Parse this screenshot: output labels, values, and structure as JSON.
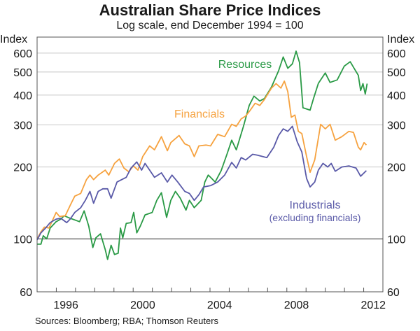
{
  "chart_data": {
    "type": "line",
    "title": "Australian Share Price Indices",
    "subtitle": "Log scale, end December 1994 = 100",
    "ylabel_left": "Index",
    "ylabel_right": "Index",
    "yscale": "log",
    "ylim": [
      60,
      700
    ],
    "xlim": [
      1995,
      2013
    ],
    "yticks": [
      60,
      100,
      200,
      300,
      400,
      500,
      600
    ],
    "xtick_labels": [
      "1996",
      "2000",
      "2004",
      "2008",
      "2012"
    ],
    "grid": true,
    "source": "Sources: Bloomberg; RBA; Thomson Reuters",
    "colors": {
      "resources": "#2a9a46",
      "financials": "#f6a23f",
      "industrials": "#5a5aa8",
      "grid": "#c8c8c8",
      "baseline": "#222222"
    },
    "series": [
      {
        "key": "resources",
        "name": "Resources",
        "label": "Resources",
        "color": "#2a9a46",
        "points": [
          [
            1995.0,
            95
          ],
          [
            1995.2,
            95
          ],
          [
            1995.32,
            103
          ],
          [
            1995.5,
            100
          ],
          [
            1995.68,
            111
          ],
          [
            1995.99,
            118
          ],
          [
            1996.23,
            121
          ],
          [
            1996.41,
            125
          ],
          [
            1996.72,
            122
          ],
          [
            1997.21,
            118
          ],
          [
            1997.45,
            131
          ],
          [
            1997.69,
            113
          ],
          [
            1997.9,
            92
          ],
          [
            1998.06,
            101
          ],
          [
            1998.3,
            105
          ],
          [
            1998.55,
            90
          ],
          [
            1998.67,
            82
          ],
          [
            1998.85,
            94
          ],
          [
            1999.03,
            86
          ],
          [
            1999.22,
            87
          ],
          [
            1999.34,
            111
          ],
          [
            1999.46,
            101
          ],
          [
            1999.64,
            116
          ],
          [
            1999.89,
            117
          ],
          [
            2000.03,
            129
          ],
          [
            2000.19,
            106
          ],
          [
            2000.37,
            113
          ],
          [
            2000.62,
            126
          ],
          [
            2000.99,
            129
          ],
          [
            2001.23,
            145
          ],
          [
            2001.47,
            156
          ],
          [
            2001.74,
            123
          ],
          [
            2001.96,
            145
          ],
          [
            2002.2,
            158
          ],
          [
            2002.45,
            148
          ],
          [
            2002.75,
            132
          ],
          [
            2002.93,
            145
          ],
          [
            2003.18,
            135
          ],
          [
            2003.54,
            145
          ],
          [
            2003.73,
            173
          ],
          [
            2003.91,
            185
          ],
          [
            2004.03,
            181
          ],
          [
            2004.27,
            173
          ],
          [
            2004.58,
            193
          ],
          [
            2004.88,
            226
          ],
          [
            2005.13,
            259
          ],
          [
            2005.37,
            236
          ],
          [
            2005.74,
            296
          ],
          [
            2006.04,
            362
          ],
          [
            2006.29,
            396
          ],
          [
            2006.59,
            378
          ],
          [
            2006.83,
            387
          ],
          [
            2007.2,
            432
          ],
          [
            2007.57,
            506
          ],
          [
            2007.81,
            578
          ],
          [
            2008.05,
            518
          ],
          [
            2008.29,
            541
          ],
          [
            2008.48,
            611
          ],
          [
            2008.66,
            547
          ],
          [
            2008.84,
            354
          ],
          [
            2009.21,
            346
          ],
          [
            2009.39,
            387
          ],
          [
            2009.64,
            448
          ],
          [
            2010.0,
            495
          ],
          [
            2010.25,
            452
          ],
          [
            2010.62,
            463
          ],
          [
            2010.99,
            529
          ],
          [
            2011.3,
            552
          ],
          [
            2011.72,
            484
          ],
          [
            2011.84,
            418
          ],
          [
            2011.96,
            447
          ],
          [
            2012.08,
            404
          ],
          [
            2012.18,
            447
          ]
        ]
      },
      {
        "key": "financials",
        "name": "Financials",
        "label": "Financials",
        "color": "#f6a23f",
        "points": [
          [
            1995.0,
            100
          ],
          [
            1995.2,
            107
          ],
          [
            1995.38,
            112
          ],
          [
            1995.62,
            111
          ],
          [
            1995.99,
            129
          ],
          [
            1996.17,
            124
          ],
          [
            1996.47,
            125
          ],
          [
            1996.72,
            138
          ],
          [
            1996.96,
            151
          ],
          [
            1997.27,
            155
          ],
          [
            1997.57,
            177
          ],
          [
            1997.75,
            185
          ],
          [
            1997.94,
            177
          ],
          [
            1998.18,
            185
          ],
          [
            1998.55,
            194
          ],
          [
            1998.73,
            185
          ],
          [
            1999.03,
            207
          ],
          [
            1999.28,
            216
          ],
          [
            1999.52,
            198
          ],
          [
            1999.77,
            191
          ],
          [
            2000.01,
            202
          ],
          [
            2000.25,
            194
          ],
          [
            2000.5,
            221
          ],
          [
            2000.86,
            245
          ],
          [
            2001.11,
            236
          ],
          [
            2001.47,
            268
          ],
          [
            2001.78,
            234
          ],
          [
            2001.96,
            253
          ],
          [
            2002.39,
            271
          ],
          [
            2002.69,
            250
          ],
          [
            2002.93,
            245
          ],
          [
            2003.18,
            221
          ],
          [
            2003.42,
            245
          ],
          [
            2003.79,
            247
          ],
          [
            2004.03,
            245
          ],
          [
            2004.4,
            274
          ],
          [
            2004.76,
            268
          ],
          [
            2005.13,
            302
          ],
          [
            2005.37,
            296
          ],
          [
            2005.62,
            318
          ],
          [
            2005.86,
            327
          ],
          [
            2006.1,
            346
          ],
          [
            2006.35,
            370
          ],
          [
            2006.59,
            362
          ],
          [
            2006.83,
            383
          ],
          [
            2007.2,
            428
          ],
          [
            2007.44,
            447
          ],
          [
            2007.69,
            428
          ],
          [
            2007.87,
            458
          ],
          [
            2008.05,
            414
          ],
          [
            2008.23,
            323
          ],
          [
            2008.42,
            330
          ],
          [
            2008.6,
            282
          ],
          [
            2008.78,
            276
          ],
          [
            2009.03,
            221
          ],
          [
            2009.21,
            190
          ],
          [
            2009.45,
            214
          ],
          [
            2009.76,
            302
          ],
          [
            2010.0,
            289
          ],
          [
            2010.25,
            302
          ],
          [
            2010.52,
            259
          ],
          [
            2010.86,
            268
          ],
          [
            2011.23,
            282
          ],
          [
            2011.47,
            279
          ],
          [
            2011.72,
            242
          ],
          [
            2011.84,
            236
          ],
          [
            2012.02,
            253
          ],
          [
            2012.14,
            247
          ]
        ]
      },
      {
        "key": "industrials",
        "name": "Industrials (excluding financials)",
        "label": "Industrials",
        "sublabel": "(excluding financials)",
        "color": "#5a5aa8",
        "points": [
          [
            1995.0,
            99
          ],
          [
            1995.2,
            106
          ],
          [
            1995.44,
            111
          ],
          [
            1995.68,
            117
          ],
          [
            1995.99,
            121
          ],
          [
            1996.23,
            122
          ],
          [
            1996.54,
            117
          ],
          [
            1996.72,
            121
          ],
          [
            1996.96,
            129
          ],
          [
            1997.27,
            135
          ],
          [
            1997.51,
            145
          ],
          [
            1997.75,
            158
          ],
          [
            1997.94,
            141
          ],
          [
            1998.18,
            158
          ],
          [
            1998.42,
            162
          ],
          [
            1998.67,
            162
          ],
          [
            1998.85,
            148
          ],
          [
            1999.16,
            173
          ],
          [
            1999.4,
            177
          ],
          [
            1999.64,
            181
          ],
          [
            1999.89,
            198
          ],
          [
            2000.19,
            210
          ],
          [
            2000.44,
            194
          ],
          [
            2000.62,
            207
          ],
          [
            2000.86,
            194
          ],
          [
            2001.11,
            181
          ],
          [
            2001.47,
            189
          ],
          [
            2001.78,
            173
          ],
          [
            2002.02,
            185
          ],
          [
            2002.32,
            173
          ],
          [
            2002.69,
            158
          ],
          [
            2002.93,
            155
          ],
          [
            2003.18,
            145
          ],
          [
            2003.42,
            153
          ],
          [
            2003.67,
            165
          ],
          [
            2004.03,
            167
          ],
          [
            2004.4,
            173
          ],
          [
            2004.76,
            185
          ],
          [
            2005.13,
            209
          ],
          [
            2005.37,
            198
          ],
          [
            2005.62,
            219
          ],
          [
            2005.86,
            214
          ],
          [
            2006.22,
            226
          ],
          [
            2006.47,
            224
          ],
          [
            2006.96,
            219
          ],
          [
            2007.32,
            242
          ],
          [
            2007.57,
            271
          ],
          [
            2007.81,
            289
          ],
          [
            2008.05,
            282
          ],
          [
            2008.29,
            296
          ],
          [
            2008.54,
            255
          ],
          [
            2008.78,
            231
          ],
          [
            2009.03,
            179
          ],
          [
            2009.21,
            165
          ],
          [
            2009.45,
            173
          ],
          [
            2009.64,
            194
          ],
          [
            2009.88,
            207
          ],
          [
            2010.13,
            200
          ],
          [
            2010.31,
            207
          ],
          [
            2010.52,
            192
          ],
          [
            2010.86,
            200
          ],
          [
            2011.23,
            202
          ],
          [
            2011.6,
            198
          ],
          [
            2011.84,
            183
          ],
          [
            2012.08,
            191
          ],
          [
            2012.14,
            193
          ]
        ]
      }
    ]
  }
}
